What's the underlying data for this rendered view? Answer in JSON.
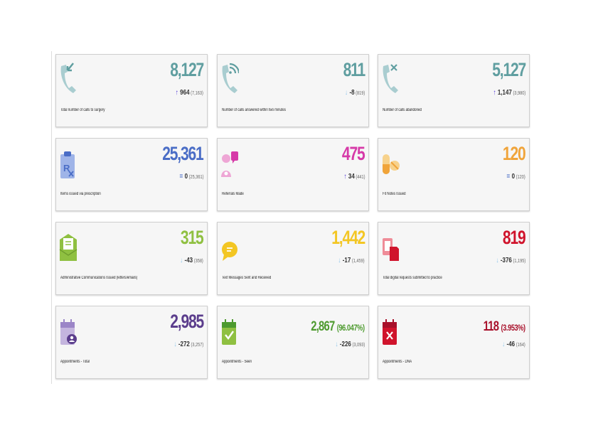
{
  "colors": {
    "teal": "#5f9ea0",
    "teal_icon": "#a9cdd0",
    "blue": "#4a6dc6",
    "magenta": "#d63aa8",
    "orange": "#f0a43a",
    "green": "#8fc041",
    "yellow": "#f3c623",
    "red": "#d0142c",
    "purple": "#5b3d8c",
    "green_dark": "#4d9a2e",
    "crimson": "#a8102a",
    "arrow_up": "#4b2fd6",
    "arrow_down": "#8ec5ea",
    "equal": "#4a6dc6"
  },
  "cards": [
    {
      "label": "Total number of calls to surgery",
      "value": "8,127",
      "pct": "",
      "arrow": "↑",
      "delta": "964",
      "prev": "(7,163)",
      "icon": "incoming-call-icon"
    },
    {
      "label": "Number of calls answered within two minutes",
      "value": "811",
      "pct": "",
      "arrow": "↓",
      "delta": "-8",
      "prev": "(819)",
      "icon": "call-answered-icon"
    },
    {
      "label": "Number of calls abandoned",
      "value": "5,127",
      "pct": "",
      "arrow": "↑",
      "delta": "1,147",
      "prev": "(3,980)",
      "icon": "call-abandoned-icon"
    },
    {
      "label": "Items issued via prescription",
      "value": "25,361",
      "pct": "",
      "arrow": "=",
      "delta": "0",
      "prev": "(25,361)",
      "icon": "prescription-icon"
    },
    {
      "label": "Referrals Made",
      "value": "475",
      "pct": "",
      "arrow": "↑",
      "delta": "34",
      "prev": "(441)",
      "icon": "referral-icon"
    },
    {
      "label": "Fit Notes Issued",
      "value": "120",
      "pct": "",
      "arrow": "=",
      "delta": "0",
      "prev": "(120)",
      "icon": "pills-icon"
    },
    {
      "label": "Administrative Communications Issued (letters/emails)",
      "value": "315",
      "pct": "",
      "arrow": "↓",
      "delta": "-43",
      "prev": "(358)",
      "icon": "envelope-icon"
    },
    {
      "label": "Text Messages Sent and Received",
      "value": "1,442",
      "pct": "",
      "arrow": "↓",
      "delta": "-17",
      "prev": "(1,459)",
      "icon": "chat-bubble-icon"
    },
    {
      "label": "Total digital requests submitted to practice",
      "value": "819",
      "pct": "",
      "arrow": "↓",
      "delta": "-376",
      "prev": "(1,195)",
      "icon": "digital-request-icon"
    },
    {
      "label": "Appointments - Total",
      "value": "2,985",
      "pct": "",
      "arrow": "↓",
      "delta": "-272",
      "prev": "(3,257)",
      "icon": "calendar-user-icon"
    },
    {
      "label": "Appointments - Seen",
      "value": "2,867",
      "pct": "(96.047%)",
      "arrow": "↓",
      "delta": "-226",
      "prev": "(3,093)",
      "icon": "calendar-check-icon"
    },
    {
      "label": "Appointments - DNA",
      "value": "118",
      "pct": "(3.953%)",
      "arrow": "↓",
      "delta": "-46",
      "prev": "(164)",
      "icon": "calendar-cross-icon"
    }
  ]
}
